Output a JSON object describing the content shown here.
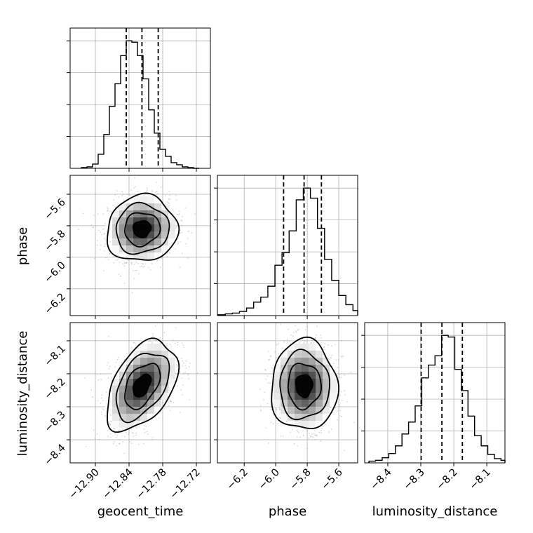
{
  "chart_data": {
    "type": "corner",
    "parameters": [
      {
        "name": "geocent_time",
        "range": [
          -12.945,
          -12.695
        ],
        "ticks": [
          -12.9,
          -12.84,
          -12.78,
          -12.72
        ],
        "tick_labels": [
          "−12.90",
          "−12.84",
          "−12.78",
          "−12.72"
        ],
        "quantiles": [
          -12.845,
          -12.817,
          -12.788
        ],
        "histogram": {
          "bin_edges": [
            -12.925,
            -12.915,
            -12.905,
            -12.895,
            -12.885,
            -12.875,
            -12.865,
            -12.855,
            -12.845,
            -12.835,
            -12.825,
            -12.815,
            -12.805,
            -12.795,
            -12.785,
            -12.775,
            -12.765,
            -12.755,
            -12.745,
            -12.735,
            -12.725,
            -12.715
          ],
          "counts": [
            1,
            2,
            6,
            20,
            48,
            88,
            120,
            160,
            181,
            179,
            160,
            127,
            83,
            50,
            27,
            17,
            8,
            5,
            2,
            1,
            0
          ]
        }
      },
      {
        "name": "phase",
        "range": [
          -6.37,
          -5.48
        ],
        "ticks": [
          -6.2,
          -6.0,
          -5.8,
          -5.6
        ],
        "tick_labels": [
          "−6.2",
          "−6.0",
          "−5.8",
          "−5.6"
        ],
        "quantiles": [
          -5.95,
          -5.82,
          -5.71
        ],
        "histogram": {
          "bin_edges": [
            -6.365,
            -6.32,
            -6.275,
            -6.23,
            -6.185,
            -6.14,
            -6.095,
            -6.05,
            -6.005,
            -5.96,
            -5.915,
            -5.87,
            -5.825,
            -5.78,
            -5.735,
            -5.69,
            -5.645,
            -5.6,
            -5.555,
            -5.51,
            -5.48
          ],
          "counts": [
            1,
            2,
            3,
            5,
            9,
            16,
            22,
            35,
            60,
            75,
            101,
            138,
            152,
            140,
            104,
            67,
            42,
            24,
            13,
            6
          ]
        }
      },
      {
        "name": "luminosity_distance",
        "range": [
          -8.47,
          -8.045
        ],
        "ticks": [
          -8.4,
          -8.3,
          -8.2,
          -8.1
        ],
        "tick_labels": [
          "−8.4",
          "−8.3",
          "−8.2",
          "−8.1"
        ],
        "quantiles": [
          -8.299,
          -8.236,
          -8.174
        ],
        "histogram": {
          "bin_edges": [
            -8.457,
            -8.437,
            -8.417,
            -8.397,
            -8.377,
            -8.357,
            -8.337,
            -8.317,
            -8.297,
            -8.277,
            -8.257,
            -8.237,
            -8.217,
            -8.197,
            -8.177,
            -8.157,
            -8.137,
            -8.117,
            -8.097,
            -8.077,
            -8.057,
            -8.045
          ],
          "counts": [
            2,
            3,
            6,
            11,
            20,
            34,
            48,
            67,
            100,
            115,
            126,
            150,
            148,
            110,
            85,
            55,
            32,
            20,
            10,
            5,
            3
          ]
        }
      }
    ],
    "pairs": [
      {
        "x": "geocent_time",
        "y": "phase",
        "center": [
          -12.817,
          -5.82
        ],
        "sigma": [
          0.03,
          0.1
        ],
        "correlation": 0.05
      },
      {
        "x": "geocent_time",
        "y": "luminosity_distance",
        "center": [
          -12.817,
          -8.236
        ],
        "sigma": [
          0.03,
          0.065
        ],
        "correlation": 0.45
      },
      {
        "x": "phase",
        "y": "luminosity_distance",
        "center": [
          -5.82,
          -8.236
        ],
        "sigma": [
          0.1,
          0.065
        ],
        "correlation": 0.0
      }
    ],
    "contour_levels_sigma": [
      0.5,
      1.0,
      1.5,
      2.0
    ],
    "grid": true,
    "colors": {
      "line": "#000000",
      "grid": "#b0b0b0",
      "points": "#8a8a8a"
    }
  }
}
